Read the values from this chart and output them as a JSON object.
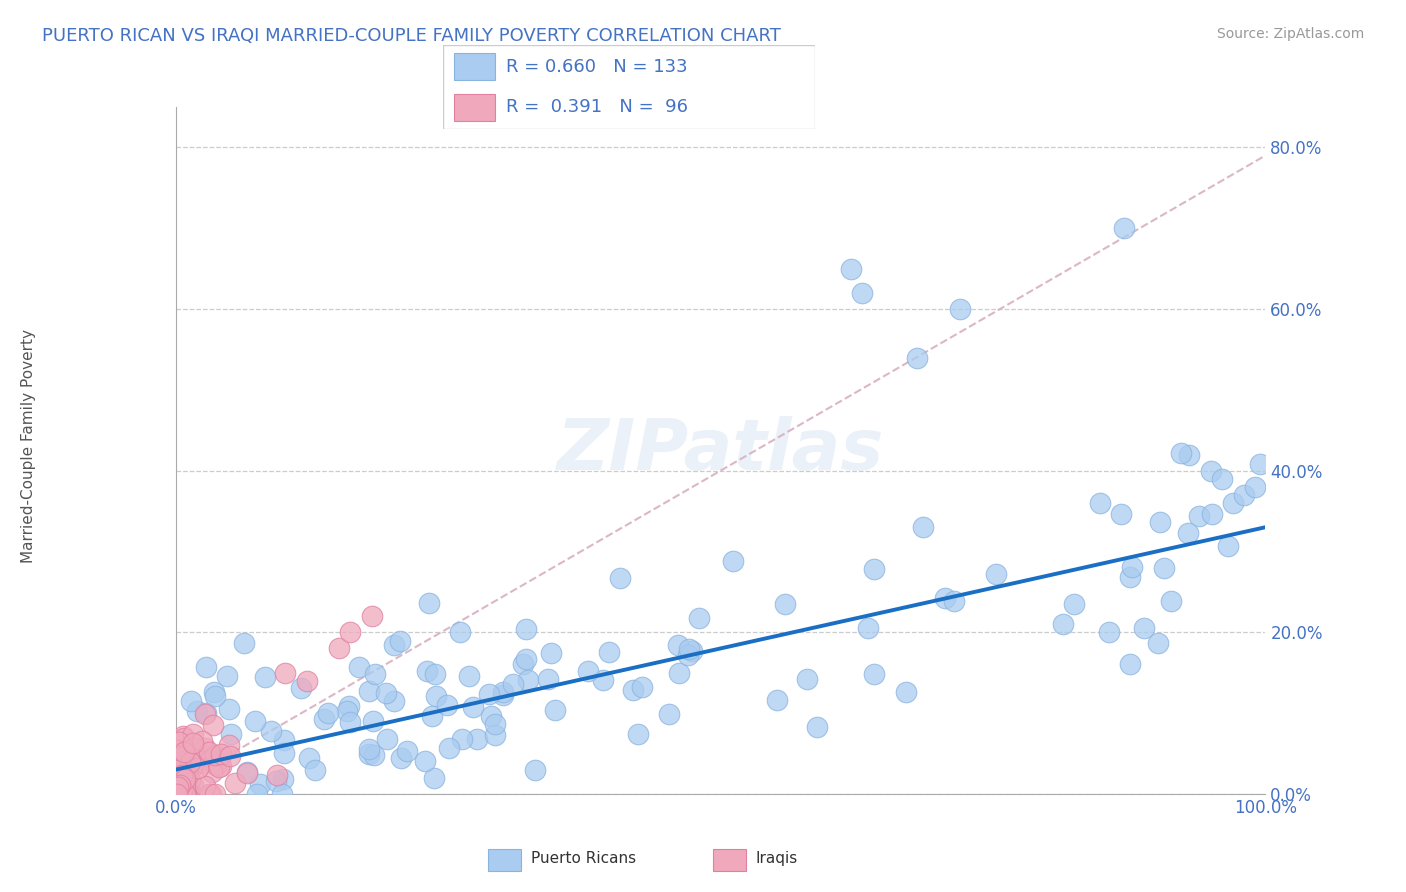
{
  "title": "PUERTO RICAN VS IRAQI MARRIED-COUPLE FAMILY POVERTY CORRELATION CHART",
  "source": "Source: ZipAtlas.com",
  "ylabel": "Married-Couple Family Poverty",
  "xlim": [
    0,
    1.0
  ],
  "ylim": [
    0,
    0.85
  ],
  "xtick_positions": [
    0.0,
    1.0
  ],
  "xtick_labels": [
    "0.0%",
    "100.0%"
  ],
  "ytick_positions": [
    0.0,
    0.2,
    0.4,
    0.6,
    0.8
  ],
  "ytick_labels": [
    "0.0%",
    "20.0%",
    "40.0%",
    "60.0%",
    "80.0%"
  ],
  "grid_yticks": [
    0.0,
    0.2,
    0.4,
    0.6,
    0.8
  ],
  "blue_R": 0.66,
  "blue_N": 133,
  "pink_R": 0.391,
  "pink_N": 96,
  "blue_color": "#aaccf0",
  "pink_color": "#f0a8bc",
  "blue_line_color": "#1a6fc4",
  "pink_line_color": "#d8a0b0",
  "tick_color": "#4472c4",
  "title_color": "#4472c4",
  "watermark": "ZIPatlas",
  "legend_label_blue": "Puerto Ricans",
  "legend_label_pink": "Iraqis"
}
